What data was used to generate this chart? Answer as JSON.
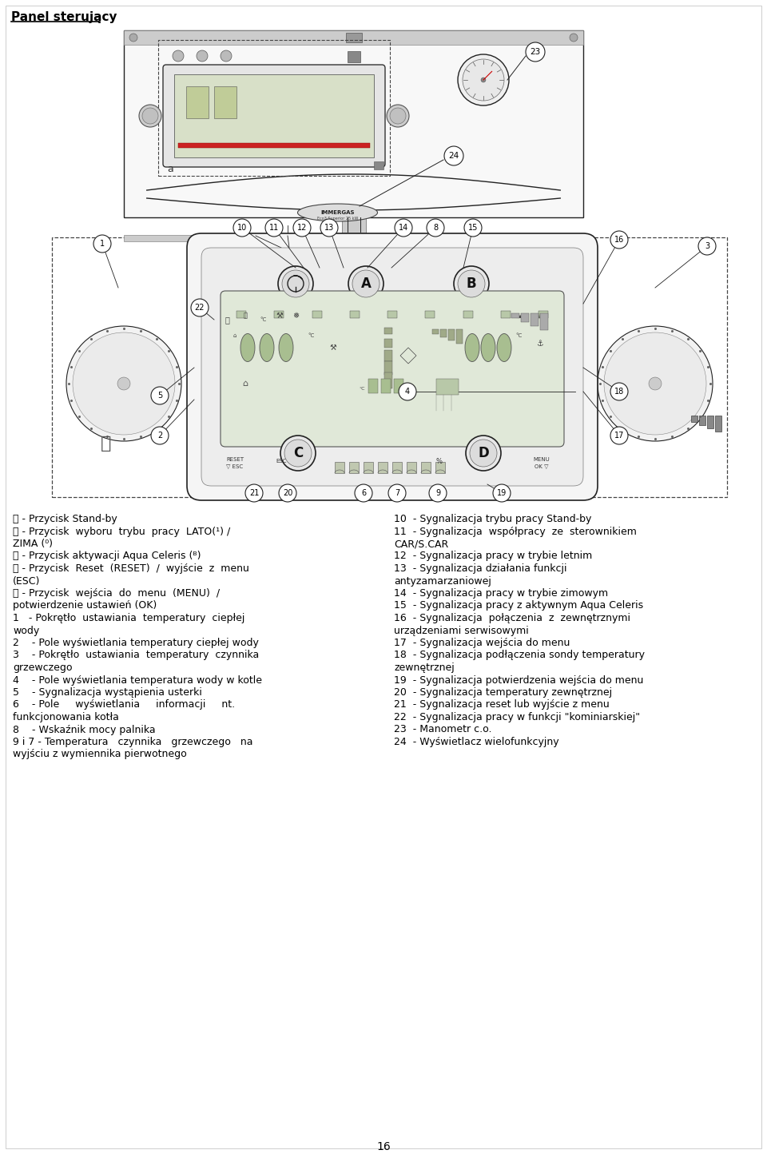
{
  "title": "Panel sterujący",
  "page_number": "16",
  "left_col": [
    [
      "⒪",
      " - Przycisk Stand-by",
      false
    ],
    [
      "Ⓐ",
      " - Przycisk  wyboru  trybu  pracy  LATO(¹) /",
      false
    ],
    [
      "",
      "ZIMA (⁰)",
      false
    ],
    [
      "Ⓑ",
      " - Przycisk aktywacji Aqua Celeris (ᴮ)",
      false
    ],
    [
      "Ⓒ",
      " - Przycisk  Reset  (RESET)  /  wyjście  z  menu",
      false
    ],
    [
      "",
      "(ESC)",
      false
    ],
    [
      "Ⓓ",
      " - Przycisk  wejścia  do  menu  (MENU)  /",
      false
    ],
    [
      "",
      "potwierdzenie ustawień (OK)",
      false
    ],
    [
      "1",
      "   - Pokrętło  ustawiania  temperatury  ciepłej",
      false
    ],
    [
      "",
      "wody",
      false
    ],
    [
      "2",
      "    - Pole wyświetlania temperatury ciepłej wody",
      false
    ],
    [
      "3",
      "    - Pokrętło  ustawiania  temperatury  czynnika",
      false
    ],
    [
      "",
      "grzewczego",
      false
    ],
    [
      "4",
      "    - Pole wyświetlania temperatura wody w kotle",
      false
    ],
    [
      "5",
      "    - Sygnalizacja wystąpienia usterki",
      false
    ],
    [
      "6",
      "    - Pole     wyświetlania     informacji     nt.",
      false
    ],
    [
      "",
      "funkcjonowania kotła",
      false
    ],
    [
      "8",
      "    - Wskaźnik mocy palnika",
      false
    ],
    [
      "9 i 7",
      " - Temperatura   czynnika   grzewczego   na",
      false
    ],
    [
      "",
      "wyjściu z wymiennika pierwotnego",
      false
    ]
  ],
  "right_col": [
    [
      "10",
      "  - Sygnalizacja trybu pracy Stand-by"
    ],
    [
      "11",
      "  - Sygnalizacja  współpracy  ze  sterownikiem"
    ],
    [
      "",
      "CAR/S.CAR"
    ],
    [
      "12",
      "  - Sygnalizacja pracy w trybie letnim"
    ],
    [
      "13",
      "  - Sygnalizacja działania funkcji"
    ],
    [
      "",
      "antyzamarzaniowej"
    ],
    [
      "14",
      "  - Sygnalizacja pracy w trybie zimowym"
    ],
    [
      "15",
      "  - Sygnalizacja pracy z aktywnym Aqua Celeris"
    ],
    [
      "16",
      "  - Sygnalizacja  połączenia  z  zewnętrznymi"
    ],
    [
      "",
      "urządzeniami serwisowymi"
    ],
    [
      "17",
      "  - Sygnalizacja wejścia do menu"
    ],
    [
      "18",
      "  - Sygnalizacja podłączenia sondy temperatury"
    ],
    [
      "",
      "zewnętrznej"
    ],
    [
      "19",
      "  - Sygnalizacja potwierdzenia wejścia do menu"
    ],
    [
      "20",
      "  - Sygnalizacja temperatury zewnętrznej"
    ],
    [
      "21",
      "  - Sygnalizacja reset lub wyjście z menu"
    ],
    [
      "22",
      "  - Sygnalizacja pracy w funkcji \"kominiarskiej\""
    ],
    [
      "23",
      "  - Manometr c.o."
    ],
    [
      "24",
      "  - Wyświetlacz wielofunkcyjny"
    ]
  ],
  "bg_color": "#ffffff",
  "text_color": "#000000",
  "line_color": "#000000",
  "diagram_color": "#222222",
  "title_fs": 11,
  "body_fs": 9.0
}
